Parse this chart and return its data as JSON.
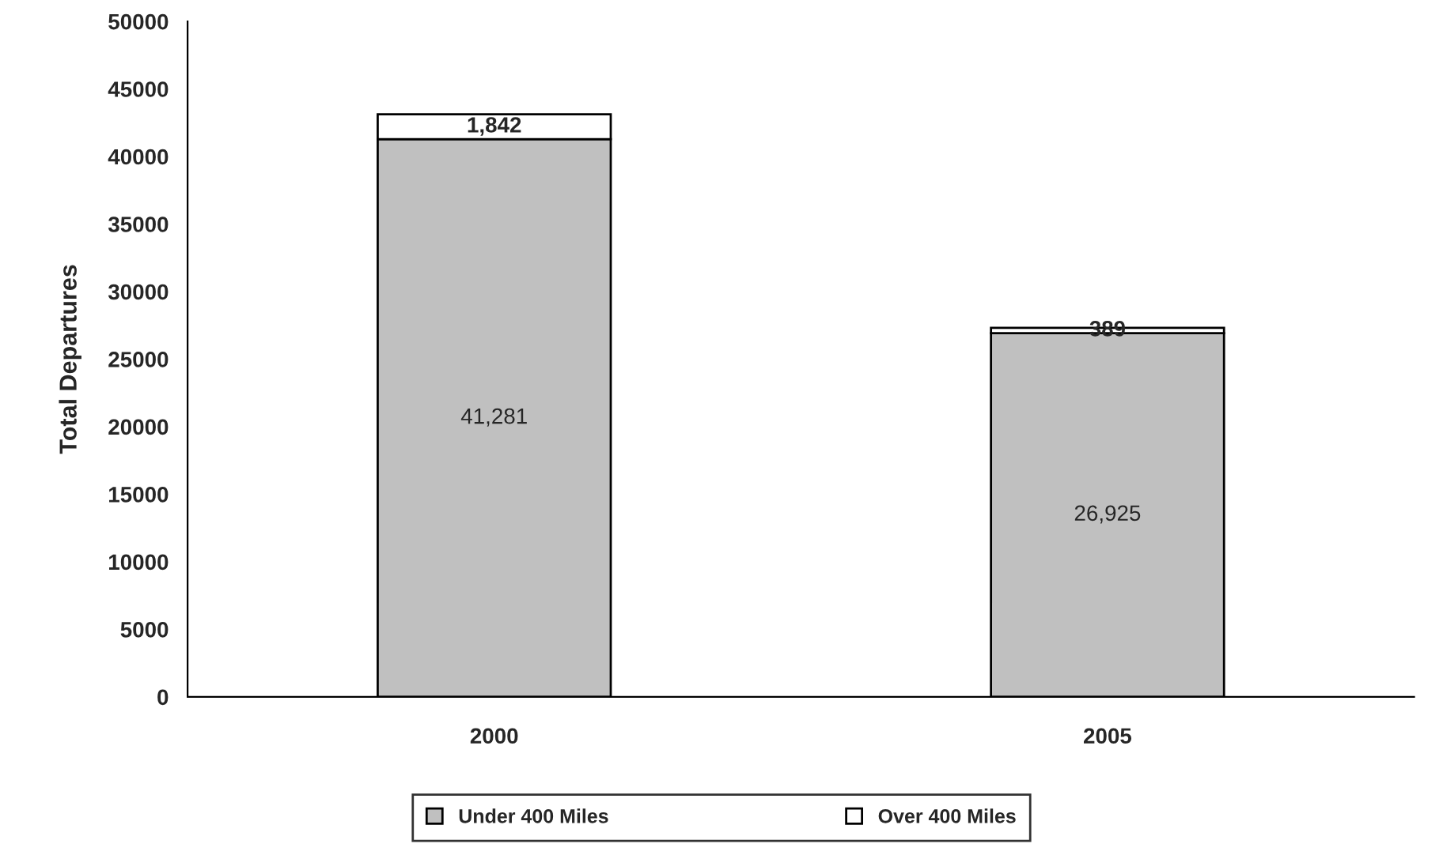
{
  "chart_data": {
    "type": "bar",
    "stacked": true,
    "ylabel": "Total Departures",
    "categories": [
      "2000",
      "2005"
    ],
    "series": [
      {
        "name": "Under 400 Miles",
        "color": "#c0c0c0",
        "values": [
          41281,
          26925
        ],
        "value_labels": [
          "41,281",
          "26,925"
        ]
      },
      {
        "name": "Over 400 Miles",
        "color": "#ffffff",
        "values": [
          1842,
          389
        ],
        "value_labels": [
          "1,842",
          "389"
        ]
      }
    ],
    "ylim": [
      0,
      50000
    ],
    "yticks": [
      0,
      5000,
      10000,
      15000,
      20000,
      25000,
      30000,
      35000,
      40000,
      45000,
      50000
    ],
    "grid": false,
    "legend": "bottom"
  }
}
